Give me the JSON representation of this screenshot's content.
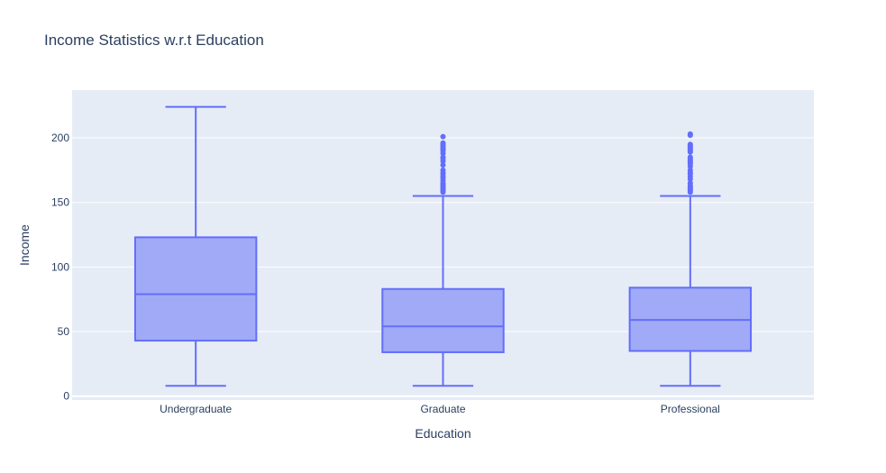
{
  "chart_data": {
    "type": "box",
    "title": "Income Statistics w.r.t Education",
    "xlabel": "Education",
    "ylabel": "Income",
    "categories": [
      "Undergraduate",
      "Graduate",
      "Professional"
    ],
    "ylim": [
      -3,
      237
    ],
    "yticks": [
      0,
      50,
      100,
      150,
      200
    ],
    "grid": true,
    "legend": "none",
    "colors": {
      "box_fill": "#a1aaf7",
      "box_line": "#636efa",
      "plot_bg": "#e5ecf6",
      "grid": "#ffffff",
      "text": "#2a3f5f"
    },
    "boxes": [
      {
        "category": "Undergraduate",
        "min": 8,
        "q1": 43,
        "median": 79,
        "q3": 123,
        "max": 224,
        "outliers": []
      },
      {
        "category": "Graduate",
        "min": 8,
        "q1": 34,
        "median": 54,
        "q3": 83,
        "max": 155,
        "outliers": [
          158,
          159,
          160,
          161,
          162,
          163,
          164,
          165,
          167,
          169,
          170,
          172,
          173,
          175,
          179,
          182,
          184,
          185,
          188,
          190,
          191,
          192,
          193,
          194,
          195,
          196,
          201
        ]
      },
      {
        "category": "Professional",
        "min": 8,
        "q1": 35,
        "median": 59,
        "q3": 84,
        "max": 155,
        "outliers": [
          158,
          159,
          160,
          161,
          162,
          163,
          165,
          168,
          170,
          172,
          173,
          175,
          178,
          180,
          181,
          182,
          183,
          184,
          185,
          189,
          190,
          191,
          192,
          193,
          194,
          195,
          202,
          203
        ]
      }
    ]
  }
}
